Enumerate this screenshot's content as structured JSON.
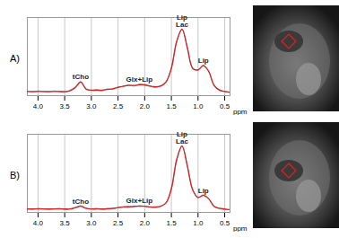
{
  "chart_data": [
    {
      "type": "line",
      "title": "A)",
      "x": [
        4.2,
        4.1,
        4.0,
        3.9,
        3.8,
        3.7,
        3.6,
        3.5,
        3.4,
        3.3,
        3.2,
        3.1,
        3.0,
        2.9,
        2.8,
        2.7,
        2.6,
        2.5,
        2.4,
        2.3,
        2.2,
        2.1,
        2.0,
        1.9,
        1.8,
        1.7,
        1.6,
        1.5,
        1.4,
        1.3,
        1.2,
        1.1,
        1.0,
        0.9,
        0.8,
        0.7,
        0.6,
        0.5,
        0.4
      ],
      "series": [
        {
          "color": "#777777",
          "values": [
            7,
            5,
            7,
            6,
            5,
            7,
            6,
            5,
            8,
            13,
            21,
            9,
            8,
            9,
            7,
            10,
            9,
            13,
            13,
            16,
            14,
            17,
            15,
            14,
            12,
            15,
            21,
            41,
            79,
            97,
            71,
            41,
            37,
            45,
            35,
            16,
            9,
            6,
            5
          ]
        },
        {
          "color": "#d62020",
          "values": [
            6,
            6,
            6,
            6,
            6,
            6,
            6,
            6,
            7,
            12,
            20,
            10,
            8,
            8,
            8,
            9,
            10,
            12,
            14,
            15,
            15,
            16,
            16,
            14,
            13,
            14,
            20,
            40,
            80,
            98,
            70,
            40,
            38,
            44,
            36,
            15,
            8,
            6,
            5
          ]
        }
      ],
      "xlim": [
        4.2,
        0.4
      ],
      "xticks": [
        {
          "value": 4.0,
          "label": "4.0"
        },
        3.5,
        {
          "value": 3.0,
          "label": "3.0"
        },
        2.5,
        {
          "value": 2.0,
          "label": "2.0"
        },
        1.5,
        {
          "value": 1.0,
          "label": "1.0"
        },
        0.5
      ],
      "ylim": [
        0,
        115
      ],
      "xlabel": "ppm",
      "grid": true,
      "tick_labels": "x",
      "annotations": [
        {
          "text": "tCho",
          "x": 3.2,
          "y": 24
        },
        {
          "text": "Glx+Lip",
          "x": 2.1,
          "y": 21
        },
        {
          "text": "Lip\nLac",
          "x": 1.3,
          "y": 101
        },
        {
          "text": "Lip",
          "x": 0.9,
          "y": 48
        }
      ]
    },
    {
      "type": "line",
      "title": "B)",
      "x": [
        4.2,
        4.1,
        4.0,
        3.9,
        3.8,
        3.7,
        3.6,
        3.5,
        3.4,
        3.3,
        3.2,
        3.1,
        3.0,
        2.9,
        2.8,
        2.7,
        2.6,
        2.5,
        2.4,
        2.3,
        2.2,
        2.1,
        2.0,
        1.9,
        1.8,
        1.7,
        1.6,
        1.5,
        1.4,
        1.3,
        1.2,
        1.1,
        1.0,
        0.9,
        0.8,
        0.7,
        0.6,
        0.5,
        0.4
      ],
      "series": [
        {
          "color": "#777777",
          "values": [
            5,
            4,
            6,
            5,
            4,
            5,
            6,
            4,
            5,
            7,
            10,
            6,
            5,
            6,
            4,
            6,
            5,
            7,
            8,
            9,
            8,
            10,
            9,
            8,
            7,
            9,
            14,
            34,
            76,
            97,
            69,
            34,
            22,
            26,
            20,
            9,
            6,
            4,
            4
          ]
        },
        {
          "color": "#d62020",
          "values": [
            5,
            5,
            5,
            5,
            5,
            5,
            5,
            5,
            5,
            7,
            9,
            6,
            5,
            5,
            5,
            5,
            6,
            7,
            8,
            8,
            9,
            9,
            9,
            8,
            8,
            9,
            14,
            35,
            78,
            98,
            68,
            33,
            22,
            25,
            20,
            9,
            6,
            5,
            4
          ]
        }
      ],
      "xlim": [
        4.2,
        0.4
      ],
      "xticks": [
        {
          "value": 4.0,
          "label": "4.0"
        },
        3.5,
        {
          "value": 3.0,
          "label": "3.0"
        },
        2.5,
        {
          "value": 2.0,
          "label": "2.0"
        },
        1.5,
        {
          "value": 1.0,
          "label": "1.0"
        },
        0.5
      ],
      "ylim": [
        0,
        115
      ],
      "xlabel": "ppm",
      "grid": true,
      "tick_labels": "x",
      "annotations": [
        {
          "text": "tCho",
          "x": 3.2,
          "y": 13
        },
        {
          "text": "Glx+Lip",
          "x": 2.1,
          "y": 14
        },
        {
          "text": "Lip\nLac",
          "x": 1.3,
          "y": 101
        },
        {
          "text": "Lip",
          "x": 0.9,
          "y": 29
        }
      ]
    }
  ]
}
